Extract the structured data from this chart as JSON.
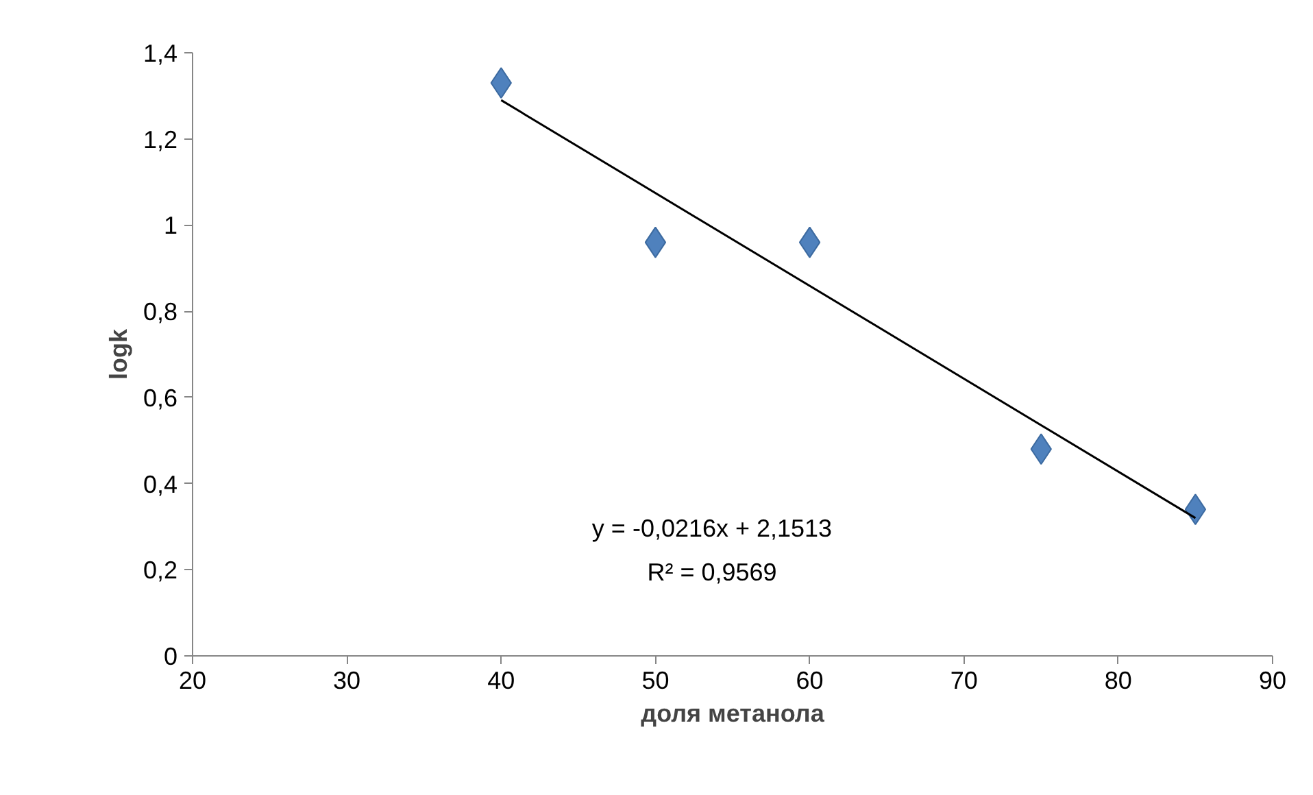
{
  "chart_data": {
    "type": "scatter",
    "xlabel": "доля метанола",
    "ylabel": "logk",
    "series": [
      {
        "marker": "diamond",
        "color": "#4f81bd",
        "x": [
          40,
          50,
          60,
          75,
          85
        ],
        "values": [
          1.33,
          0.96,
          0.96,
          0.48,
          0.34
        ]
      },
      {
        "type": "line",
        "marker": "none",
        "color": "#000000",
        "x": [
          40,
          85
        ],
        "values": [
          1.29,
          0.32
        ]
      }
    ],
    "annotations": [
      "y = -0,0216x + 2,1513",
      "R² = 0,9569"
    ],
    "xlim": [
      20,
      90
    ],
    "xticks": [
      20,
      30,
      40,
      50,
      60,
      70,
      80,
      90
    ],
    "ylim": [
      0,
      1.4
    ],
    "yticks": [
      0,
      {
        "value": 0.2,
        "label": "0,2"
      },
      {
        "value": 0.4,
        "label": "0,4"
      },
      {
        "value": 0.6,
        "label": "0,6"
      },
      {
        "value": 0.8,
        "label": "0,8"
      },
      1,
      {
        "value": 1.2,
        "label": "1,2"
      },
      {
        "value": 1.4,
        "label": "1,4"
      }
    ],
    "grid": false
  }
}
